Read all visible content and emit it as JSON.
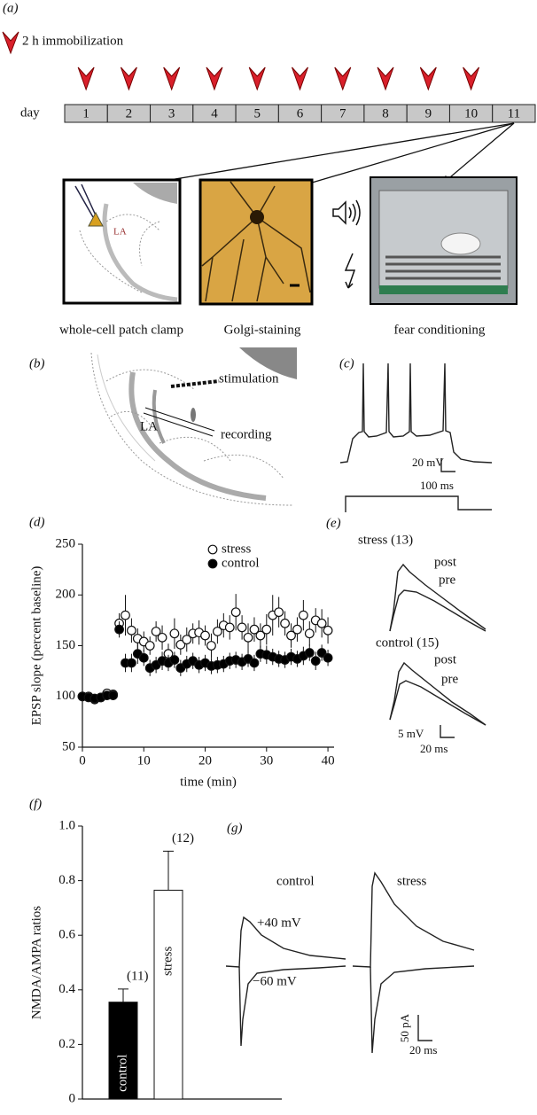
{
  "panels": {
    "a": {
      "label": "(a)",
      "legend": "2 h immobilization",
      "axis_label": "day",
      "days": [
        "1",
        "2",
        "3",
        "4",
        "5",
        "6",
        "7",
        "8",
        "9",
        "10",
        "11"
      ],
      "inset_label": "LA",
      "captions": [
        "whole-cell patch clamp",
        "Golgi-staining",
        "fear conditioning"
      ]
    },
    "b": {
      "label": "(b)",
      "stimulation": "stimulation",
      "recording": "recording",
      "region": "LA"
    },
    "c": {
      "label": "(c)",
      "scale_y": "20 mV",
      "scale_x": "100 ms"
    },
    "e": {
      "label": "(e)",
      "groups": [
        {
          "title": "stress (13)",
          "post": "post",
          "pre": "pre"
        },
        {
          "title": "control (15)",
          "post": "post",
          "pre": "pre"
        }
      ],
      "scale_y": "5 mV",
      "scale_x": "20 ms"
    },
    "g": {
      "label": "(g)",
      "groups": [
        "control",
        "stress"
      ],
      "positive": "+40 mV",
      "negative": "−60 mV",
      "scale_y": "50 pA",
      "scale_x": "20 ms"
    }
  },
  "chart_data": [
    {
      "type": "scatter",
      "label": "(d)",
      "xlabel": "time (min)",
      "ylabel": "EPSP slope (percent baseline)",
      "x": [
        0,
        1,
        2,
        3,
        4,
        5,
        6,
        7,
        8,
        9,
        10,
        11,
        12,
        13,
        14,
        15,
        16,
        17,
        18,
        19,
        20,
        21,
        22,
        23,
        24,
        25,
        26,
        27,
        28,
        29,
        30,
        31,
        32,
        33,
        34,
        35,
        36,
        37,
        38,
        39,
        40
      ],
      "series": [
        {
          "name": "stress",
          "color": "#ffffff",
          "values": [
            100,
            100,
            97,
            99,
            103,
            102,
            172,
            180,
            165,
            157,
            154,
            150,
            164,
            158,
            142,
            162,
            151,
            156,
            162,
            163,
            160,
            150,
            164,
            170,
            168,
            183,
            168,
            158,
            166,
            160,
            166,
            180,
            183,
            172,
            160,
            166,
            180,
            162,
            175,
            172,
            165
          ],
          "errors": [
            3,
            3,
            3,
            3,
            3,
            3,
            10,
            20,
            12,
            10,
            10,
            9,
            10,
            12,
            10,
            15,
            10,
            12,
            10,
            12,
            10,
            12,
            12,
            12,
            12,
            18,
            12,
            14,
            12,
            12,
            15,
            20,
            15,
            12,
            12,
            12,
            15,
            12,
            12,
            14,
            13
          ]
        },
        {
          "name": "control",
          "color": "#000000",
          "values": [
            100,
            99,
            98,
            99,
            101,
            101,
            166,
            133,
            133,
            142,
            138,
            128,
            131,
            135,
            133,
            136,
            128,
            132,
            135,
            131,
            133,
            130,
            131,
            132,
            135,
            136,
            134,
            137,
            133,
            142,
            141,
            139,
            137,
            136,
            139,
            137,
            140,
            143,
            135,
            143,
            138
          ],
          "errors": [
            2,
            2,
            2,
            2,
            2,
            2,
            8,
            9,
            9,
            10,
            8,
            8,
            8,
            9,
            8,
            8,
            8,
            8,
            8,
            8,
            8,
            8,
            8,
            8,
            8,
            8,
            8,
            8,
            8,
            8,
            9,
            8,
            8,
            8,
            8,
            8,
            9,
            8,
            9,
            8,
            8
          ]
        }
      ],
      "xlim": [
        0,
        41
      ],
      "ylim": [
        50,
        250
      ],
      "xticks": [
        0,
        10,
        20,
        30,
        40
      ],
      "yticks": [
        50,
        100,
        150,
        200,
        250
      ]
    },
    {
      "type": "bar",
      "label": "(f)",
      "ylabel": "NMDA/AMPA ratios",
      "categories": [
        "control",
        "stress"
      ],
      "values": [
        0.355,
        0.765
      ],
      "errors": [
        0.048,
        0.143
      ],
      "colors": [
        "#000000",
        "#ffffff"
      ],
      "n_labels": [
        "(11)",
        "(12)"
      ],
      "ylim": [
        0,
        1
      ],
      "yticks": [
        0,
        0.2,
        0.4,
        0.6,
        0.8,
        {
          "value": 1,
          "label": "1.0"
        }
      ]
    }
  ]
}
